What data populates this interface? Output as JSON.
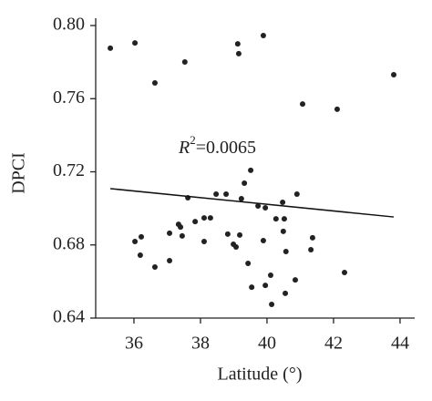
{
  "chart_data": {
    "type": "scatter",
    "x_label": "Latitude (°)",
    "y_label": "DPCI",
    "annotation": [
      "R",
      "2",
      "=0.0065"
    ],
    "xlim": [
      34.85,
      44.44
    ],
    "ylim": [
      0.64,
      0.804
    ],
    "xticks": [
      36,
      38,
      40,
      42,
      44
    ],
    "yticks": [
      {
        "value": 0.64,
        "label": "0.64"
      },
      {
        "value": 0.68,
        "label": "0.68"
      },
      {
        "value": 0.72,
        "label": "0.72"
      },
      {
        "value": 0.76,
        "label": "0.76"
      },
      {
        "value": 0.8,
        "label": "0.80"
      }
    ],
    "color": "#222222",
    "line_color": "#111111",
    "x": [
      35.29,
      36.03,
      36.63,
      37.53,
      39.12,
      39.15,
      39.89,
      43.81,
      41.07,
      42.11,
      39.51,
      39.32,
      38.47,
      38.77,
      37.62,
      39.23,
      40.9,
      39.73,
      39.95,
      40.47,
      40.27,
      40.52,
      37.84,
      38.11,
      38.3,
      37.34,
      37.4,
      38.82,
      37.45,
      37.07,
      36.22,
      36.03,
      38.11,
      39.18,
      38.99,
      39.07,
      39.89,
      40.49,
      41.37,
      41.32,
      40.57,
      36.19,
      37.07,
      36.63,
      39.43,
      40.11,
      40.85,
      39.54,
      39.95,
      40.55,
      40.14,
      42.33
    ],
    "y": [
      0.7876,
      0.7905,
      0.7686,
      0.7801,
      0.79,
      0.7846,
      0.7945,
      0.7731,
      0.7571,
      0.7542,
      0.7208,
      0.7138,
      0.7078,
      0.7078,
      0.7058,
      0.7053,
      0.7078,
      0.7013,
      0.7003,
      0.7033,
      0.6943,
      0.6943,
      0.6928,
      0.6948,
      0.6948,
      0.6913,
      0.6898,
      0.6859,
      0.6849,
      0.6864,
      0.6844,
      0.6819,
      0.6819,
      0.6854,
      0.6804,
      0.6789,
      0.6824,
      0.6874,
      0.6839,
      0.6774,
      0.6764,
      0.6744,
      0.6714,
      0.6679,
      0.6699,
      0.6634,
      0.6609,
      0.6569,
      0.6579,
      0.6535,
      0.6475,
      0.6649
    ],
    "trendline": {
      "x": [
        35.29,
        43.81
      ],
      "y": [
        0.7108,
        0.6953
      ]
    }
  }
}
